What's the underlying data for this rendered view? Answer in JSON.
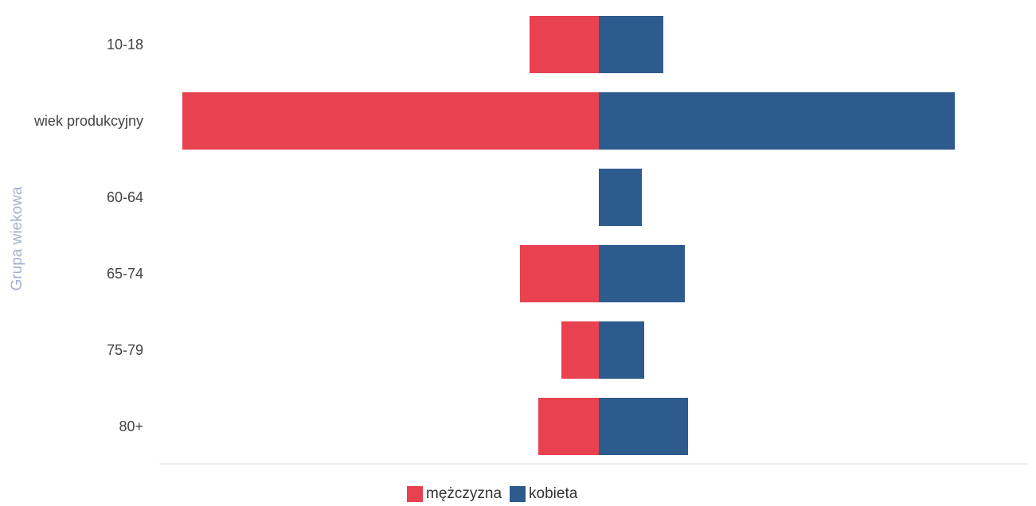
{
  "chart_data": {
    "type": "bar",
    "orientation": "horizontal",
    "stacked": "diverging",
    "y_label": "Grupa wiekowa",
    "categories": [
      "10-18",
      "wiek produkcyjny",
      "60-64",
      "65-74",
      "75-79",
      "80+"
    ],
    "series": [
      {
        "name": "mężczyzna",
        "color": "#e8414f",
        "values": [
          -87,
          -523,
          0,
          -99,
          -47,
          -76
        ]
      },
      {
        "name": "kobieta",
        "color": "#2d5b8e",
        "values": [
          81,
          447,
          54,
          108,
          57,
          112
        ]
      }
    ],
    "xlim": [
      -552,
      538
    ]
  }
}
